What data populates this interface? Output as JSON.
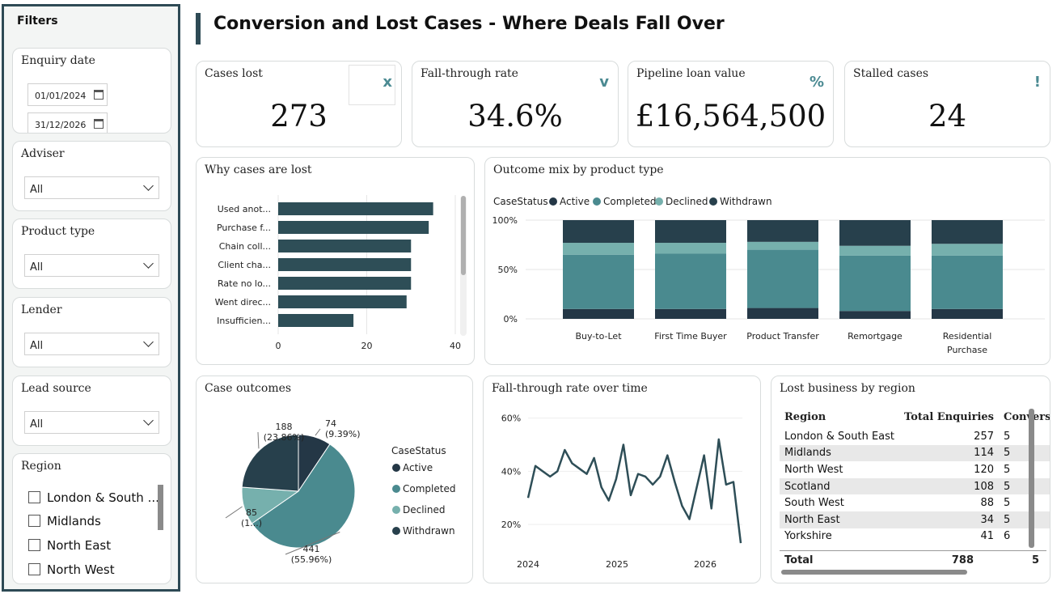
{
  "filters": {
    "title": "Filters",
    "enquiry_date": {
      "label": "Enquiry date",
      "from": "01/01/2024",
      "to": "31/12/2026"
    },
    "adviser": {
      "label": "Adviser",
      "value": "All"
    },
    "product_type": {
      "label": "Product type",
      "value": "All"
    },
    "lender": {
      "label": "Lender",
      "value": "All"
    },
    "lead_source": {
      "label": "Lead source",
      "value": "All"
    },
    "region": {
      "label": "Region",
      "items": [
        "London & South ...",
        "Midlands",
        "North East",
        "North West"
      ]
    }
  },
  "page": {
    "title": "Conversion and Lost Cases - Where Deals Fall Over"
  },
  "kpis": [
    {
      "label": "Cases lost",
      "value": "273",
      "icon": "x"
    },
    {
      "label": "Fall-through rate",
      "value": "34.6%",
      "icon": "v"
    },
    {
      "label": "Pipeline loan value",
      "value": "£16,564,500",
      "icon": "%"
    },
    {
      "label": "Stalled cases",
      "value": "24",
      "icon": "!"
    }
  ],
  "colors": {
    "active": "#243746",
    "completed": "#4a8a8f",
    "declined": "#76b0ad",
    "withdrawn": "#27404c",
    "bar": "#2e4e57",
    "line": "#2e4e57"
  },
  "chart_data": [
    {
      "type": "bar",
      "title": "Why cases are lost",
      "categories": [
        "Used anot...",
        "Purchase f...",
        "Chain coll...",
        "Client cha...",
        "Rate no lo...",
        "Went direc...",
        "Insufficien..."
      ],
      "values": [
        35,
        34,
        30,
        30,
        30,
        29,
        17
      ],
      "xticks": [
        "0",
        "20",
        "40"
      ],
      "xlim": [
        0,
        40
      ]
    },
    {
      "type": "bar",
      "title": "Outcome mix by product type",
      "legend_title": "CaseStatus",
      "categories": [
        "Buy-to-Let",
        "First Time Buyer",
        "Product Transfer",
        "Remortgage",
        "Residential Purchase"
      ],
      "series": [
        {
          "name": "Active",
          "values": [
            10,
            10,
            11,
            8,
            10
          ]
        },
        {
          "name": "Completed",
          "values": [
            55,
            56,
            59,
            56,
            54
          ]
        },
        {
          "name": "Declined",
          "values": [
            12,
            11,
            8,
            10,
            12
          ]
        },
        {
          "name": "Withdrawn",
          "values": [
            23,
            23,
            22,
            26,
            24
          ]
        }
      ],
      "yticks": [
        "0%",
        "50%",
        "100%"
      ],
      "ylim": [
        0,
        100
      ]
    },
    {
      "type": "pie",
      "title": "Case outcomes",
      "legend_title": "CaseStatus",
      "labels": [
        "Active",
        "Completed",
        "Declined",
        "Withdrawn"
      ],
      "values": [
        74,
        441,
        85,
        188
      ],
      "data_labels": [
        [
          "74",
          "(9.39%)"
        ],
        [
          "441",
          "(55.96%)"
        ],
        [
          "85",
          "(1...)"
        ],
        [
          "188",
          "(23.86%)"
        ]
      ]
    },
    {
      "type": "line",
      "title": "Fall-through rate over time",
      "y": [
        30,
        42,
        40,
        38,
        40,
        48,
        43,
        41,
        39,
        45,
        34,
        29,
        37,
        50,
        31,
        39,
        38,
        35,
        38,
        46,
        36,
        27,
        22,
        34,
        46,
        26,
        52,
        35,
        36,
        13
      ],
      "xticks": [
        "2024",
        "2025",
        "2026"
      ],
      "yticks": [
        "20%",
        "40%",
        "60%"
      ],
      "ylim": [
        10,
        62
      ]
    }
  ],
  "region_table": {
    "title": "Lost business by region",
    "columns": [
      "Region",
      "Total Enquiries",
      "Conversion"
    ],
    "rows": [
      [
        "London & South East",
        "257",
        "5"
      ],
      [
        "Midlands",
        "114",
        "5"
      ],
      [
        "North West",
        "120",
        "5"
      ],
      [
        "Scotland",
        "108",
        "5"
      ],
      [
        "South West",
        "88",
        "5"
      ],
      [
        "North East",
        "34",
        "5"
      ],
      [
        "Yorkshire",
        "41",
        "6"
      ]
    ],
    "total": [
      "Total",
      "788",
      "5"
    ]
  }
}
